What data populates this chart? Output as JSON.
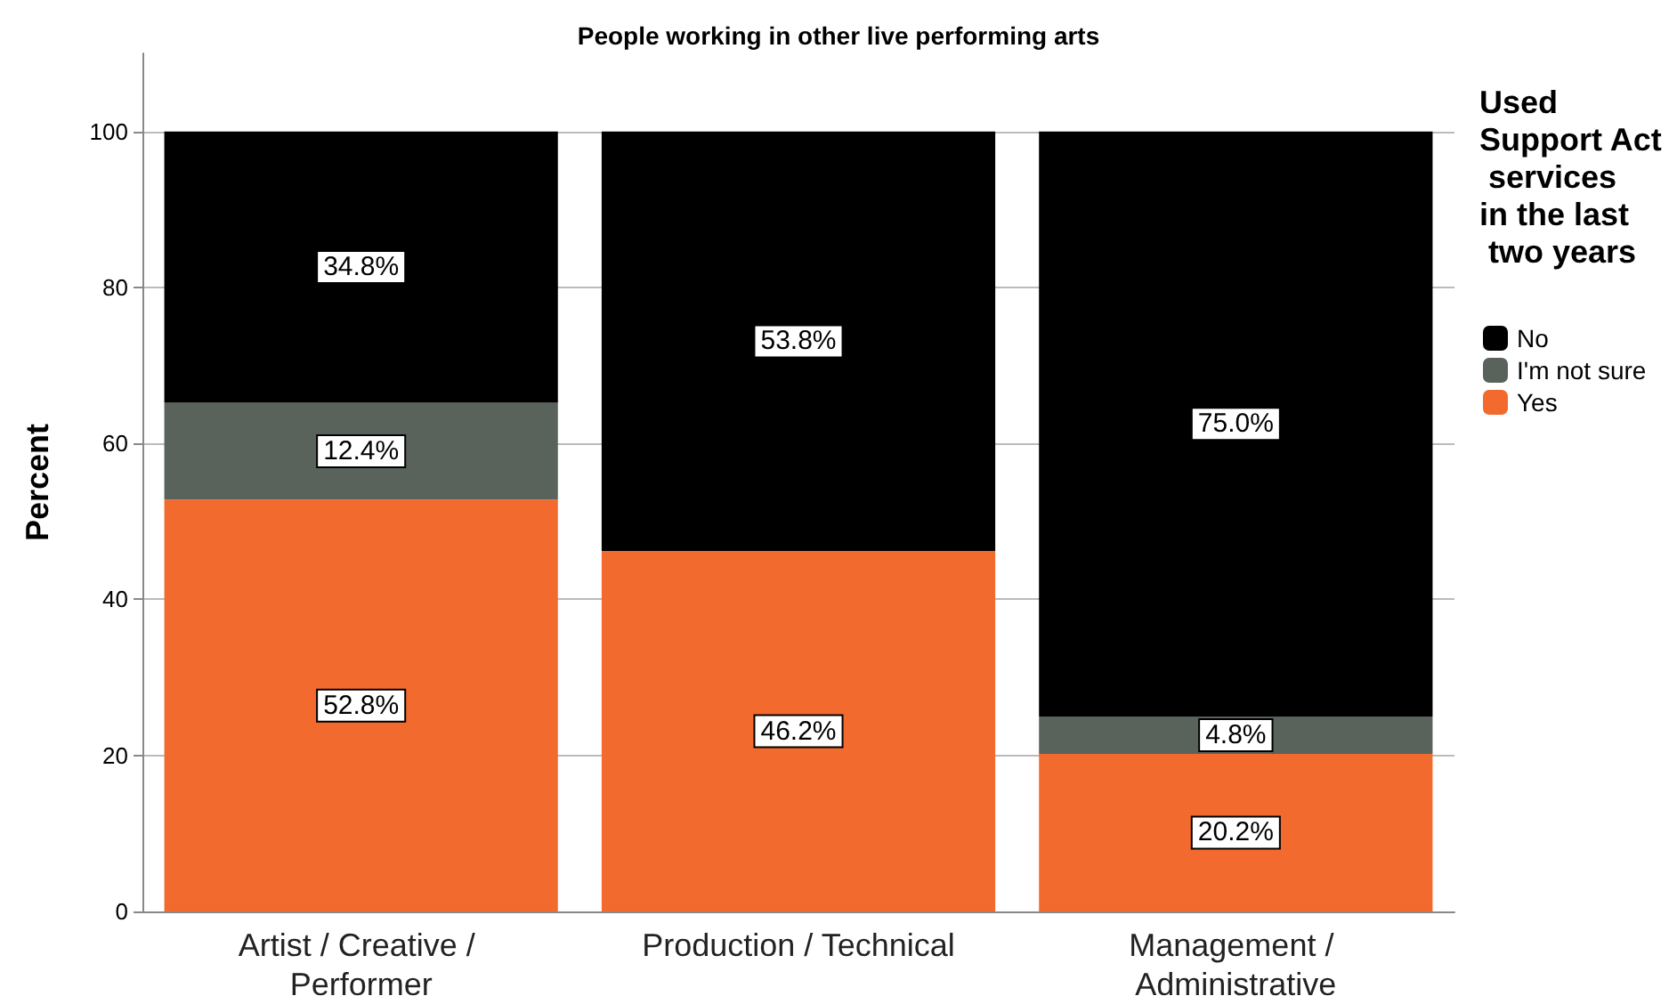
{
  "chart_data": {
    "type": "bar",
    "title": "People working in other live performing arts",
    "ylabel": "Percent",
    "legend_title": "Used Support Act services in the last two years",
    "categories": [
      "Artist / Creative / Performer",
      "Production / Technical",
      "Management / Administrative"
    ],
    "stacked": true,
    "series": [
      {
        "name": "Yes",
        "color": "#f26a2e",
        "values": [
          52.8,
          46.2,
          20.2
        ],
        "value_labels": [
          "52.8%",
          "46.2%",
          "20.2%"
        ]
      },
      {
        "name": "I'm not sure",
        "color": "#5a625c",
        "values": [
          12.4,
          null,
          4.8
        ],
        "value_labels": [
          "12.4%",
          null,
          "4.8%"
        ]
      },
      {
        "name": "No",
        "color": "#000000",
        "values": [
          34.8,
          53.8,
          75.0
        ],
        "value_labels": [
          "34.8%",
          "53.8%",
          "75.0%"
        ]
      }
    ],
    "ylim": [
      0,
      110
    ],
    "yticks": [
      0,
      20,
      40,
      60,
      80,
      100
    ],
    "grid": "y",
    "legend": "right"
  }
}
